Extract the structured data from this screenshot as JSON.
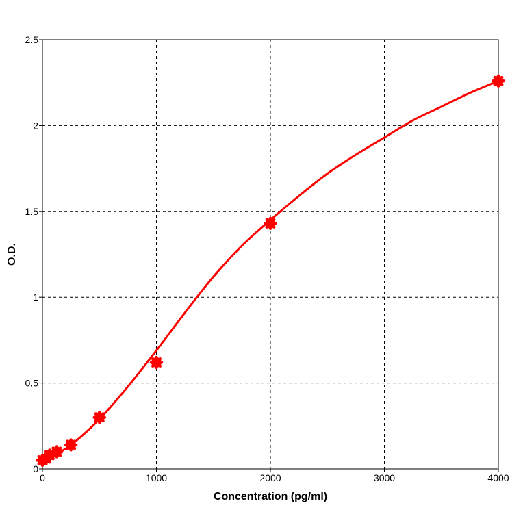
{
  "chart_data": {
    "type": "scatter",
    "title": "",
    "xlabel": "Concentration (pg/ml)",
    "ylabel": "O.D.",
    "xlim": [
      0,
      4000
    ],
    "ylim": [
      0,
      2.5
    ],
    "x_ticks": [
      0,
      1000,
      2000,
      3000,
      4000
    ],
    "y_ticks": [
      0,
      0.5,
      1,
      1.5,
      2,
      2.5
    ],
    "x_tick_labels": [
      "0",
      "1000",
      "2000",
      "3000",
      "4000"
    ],
    "y_tick_labels": [
      "0",
      "0.5",
      "1",
      "1.5",
      "2",
      "2.5"
    ],
    "grid": true,
    "grid_style": "dashed",
    "legend": "none",
    "colors": {
      "series": "#ff0000",
      "grid": "#000000",
      "axis": "#000000"
    },
    "series": [
      {
        "x": [
          0,
          31.25,
          62.5,
          125,
          250,
          500,
          1000,
          2000,
          4000
        ],
        "y": [
          0.05,
          0.06,
          0.08,
          0.1,
          0.14,
          0.3,
          0.62,
          1.43,
          2.26
        ]
      }
    ],
    "fit_curve": {
      "x": [
        0,
        250,
        500,
        750,
        1000,
        1250,
        1500,
        1750,
        2000,
        2250,
        2500,
        2750,
        3000,
        3250,
        3500,
        3750,
        4000
      ],
      "y": [
        0.04,
        0.14,
        0.29,
        0.48,
        0.69,
        0.91,
        1.12,
        1.3,
        1.45,
        1.59,
        1.72,
        1.83,
        1.93,
        2.03,
        2.11,
        2.19,
        2.26
      ]
    }
  }
}
